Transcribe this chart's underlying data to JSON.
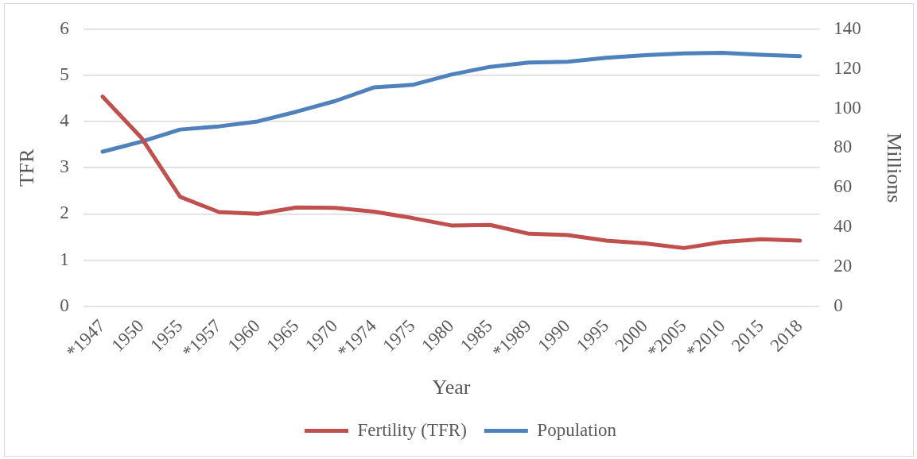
{
  "chart_data": {
    "type": "line",
    "xlabel": "Year",
    "ylabel": "TFR",
    "y2label": "Millions",
    "categories": [
      "*1947",
      "1950",
      "1955",
      "*1957",
      "1960",
      "1965",
      "1970",
      "*1974",
      "1975",
      "1980",
      "1985",
      "*1989",
      "1990",
      "1995",
      "2000",
      "*2005",
      "*2010",
      "2015",
      "2018"
    ],
    "series": [
      {
        "name": "Fertility (TFR)",
        "color": "#c0504d",
        "values": [
          4.54,
          3.65,
          2.37,
          2.04,
          2.0,
          2.14,
          2.13,
          2.05,
          1.91,
          1.75,
          1.76,
          1.57,
          1.54,
          1.42,
          1.36,
          1.26,
          1.39,
          1.45,
          1.42
        ]
      },
      {
        "name": "Population",
        "color": "#4f81bd",
        "axis": "y2",
        "values": [
          78.1,
          83.2,
          89.3,
          90.9,
          93.4,
          98.3,
          103.7,
          110.6,
          111.9,
          117.1,
          121.0,
          123.2,
          123.6,
          125.6,
          126.9,
          127.8,
          128.1,
          127.1,
          126.4
        ]
      }
    ],
    "ylim": [
      0,
      6
    ],
    "yticks": [
      0,
      1,
      2,
      3,
      4,
      5,
      6
    ],
    "y2lim": [
      0,
      140
    ],
    "y2ticks": [
      0,
      20,
      40,
      60,
      80,
      100,
      120,
      140
    ],
    "grid": "y",
    "legend": "bottom",
    "marker": "none",
    "line_style": "solid"
  }
}
